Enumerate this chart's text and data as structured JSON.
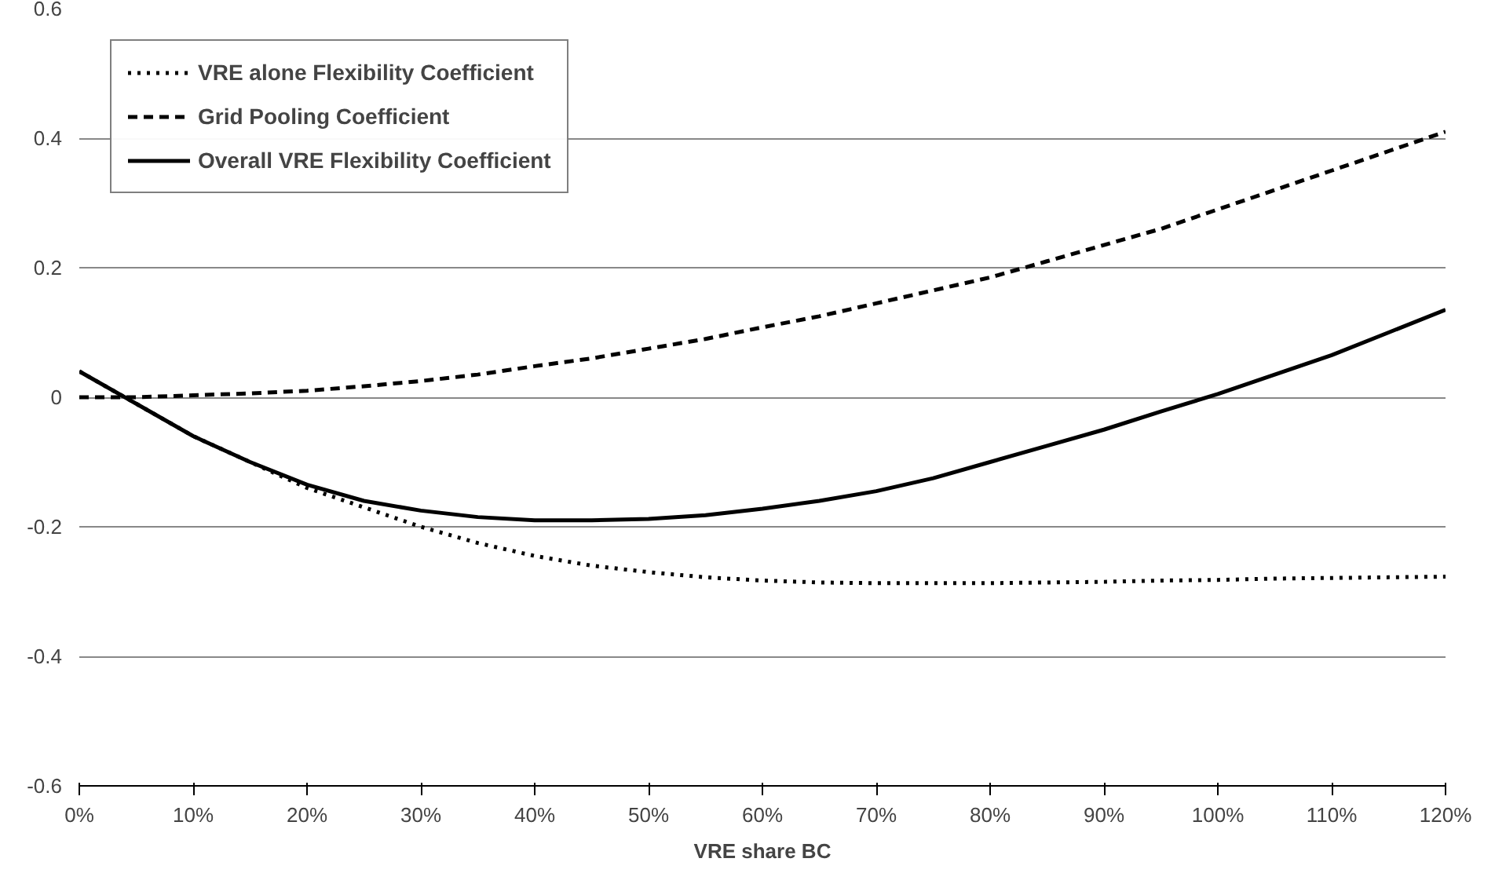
{
  "chart_data": {
    "type": "line",
    "xlabel": "VRE share BC",
    "x": [
      0,
      5,
      10,
      15,
      20,
      25,
      30,
      35,
      40,
      45,
      50,
      55,
      60,
      65,
      70,
      75,
      80,
      85,
      90,
      95,
      100,
      105,
      110,
      115,
      120
    ],
    "series": [
      {
        "name": "VRE alone Flexibility Coefficient",
        "color": "#000000",
        "line_style": "dotted",
        "values": [
          0.04,
          -0.01,
          -0.06,
          -0.1,
          -0.14,
          -0.17,
          -0.2,
          -0.225,
          -0.245,
          -0.26,
          -0.27,
          -0.278,
          -0.283,
          -0.286,
          -0.287,
          -0.287,
          -0.287,
          -0.286,
          -0.285,
          -0.283,
          -0.282,
          -0.28,
          -0.279,
          -0.278,
          -0.277
        ]
      },
      {
        "name": "Grid Pooling Coefficient",
        "color": "#000000",
        "line_style": "dashed",
        "values": [
          0,
          0,
          0.003,
          0.006,
          0.01,
          0.017,
          0.025,
          0.035,
          0.048,
          0.06,
          0.075,
          0.09,
          0.108,
          0.125,
          0.145,
          0.165,
          0.185,
          0.21,
          0.235,
          0.26,
          0.29,
          0.32,
          0.35,
          0.38,
          0.41
        ]
      },
      {
        "name": "Overall VRE Flexibility Coefficient",
        "color": "#000000",
        "line_style": "solid",
        "values": [
          0.04,
          -0.01,
          -0.06,
          -0.1,
          -0.135,
          -0.16,
          -0.175,
          -0.185,
          -0.19,
          -0.19,
          -0.188,
          -0.182,
          -0.172,
          -0.16,
          -0.145,
          -0.125,
          -0.1,
          -0.075,
          -0.05,
          -0.022,
          0.005,
          0.035,
          0.065,
          0.1,
          0.135
        ]
      }
    ],
    "xlim": [
      0,
      120
    ],
    "xticks": [
      {
        "value": 0,
        "label": "0%"
      },
      {
        "value": 10,
        "label": "10%"
      },
      {
        "value": 20,
        "label": "20%"
      },
      {
        "value": 30,
        "label": "30%"
      },
      {
        "value": 40,
        "label": "40%"
      },
      {
        "value": 50,
        "label": "50%"
      },
      {
        "value": 60,
        "label": "60%"
      },
      {
        "value": 70,
        "label": "70%"
      },
      {
        "value": 80,
        "label": "80%"
      },
      {
        "value": 90,
        "label": "90%"
      },
      {
        "value": 100,
        "label": "100%"
      },
      {
        "value": 110,
        "label": "110%"
      },
      {
        "value": 120,
        "label": "120%"
      }
    ],
    "ylim": [
      -0.6,
      0.6
    ],
    "yticks": [
      -0.6,
      -0.4,
      -0.2,
      0,
      0.2,
      0.4,
      0.6
    ],
    "grid": "y",
    "legend": "top left",
    "marker": "none"
  }
}
